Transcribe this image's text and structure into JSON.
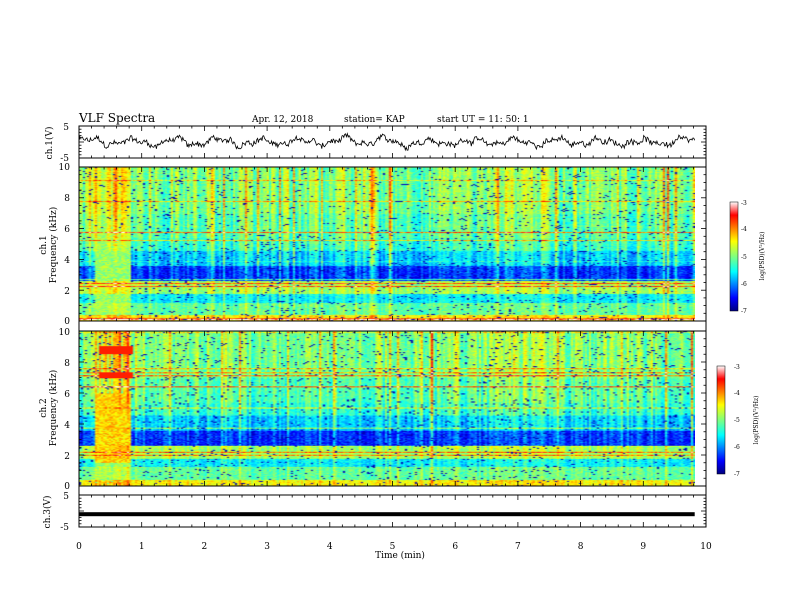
{
  "header": {
    "title": "VLF Spectra",
    "date": "Apr. 12, 2018",
    "station": "station= KAP",
    "start": "start  UT =   11: 50: 1"
  },
  "chart_data": [
    {
      "type": "line",
      "name": "ch1-waveform",
      "ylabel": "ch.1(V)",
      "ylim": [
        -5,
        5
      ],
      "yticks": [
        "5",
        "-5"
      ],
      "xlim": [
        0,
        10
      ],
      "t_end": 9.82,
      "description": "noisy waveform oscillating roughly between -2 and 2 V"
    },
    {
      "type": "heatmap",
      "name": "ch1-spectrogram",
      "ylabel": "ch.1",
      "ylabel2": "Frequency (kHz)",
      "ylim": [
        0,
        10
      ],
      "yticks": [
        "0",
        "2",
        "4",
        "6",
        "8",
        "10"
      ],
      "xlim": [
        0,
        10
      ],
      "t_end": 9.82,
      "colorbar": {
        "label": "log(PSD)(V²/Hz)",
        "range": [
          -7,
          -3
        ],
        "ticks": [
          "-3",
          "-4",
          "-5",
          "-6",
          "-7"
        ]
      }
    },
    {
      "type": "heatmap",
      "name": "ch2-spectrogram",
      "ylabel": "ch.2",
      "ylabel2": "Frequency (kHz)",
      "ylim": [
        0,
        10
      ],
      "yticks": [
        "0",
        "2",
        "4",
        "6",
        "8",
        "10"
      ],
      "xlim": [
        0,
        10
      ],
      "t_end": 9.82,
      "colorbar": {
        "label": "log(PSD)(V²/Hz)",
        "range": [
          -7,
          -3
        ],
        "ticks": [
          "-3",
          "-4",
          "-5",
          "-6",
          "-7"
        ]
      }
    },
    {
      "type": "line",
      "name": "ch3-waveform",
      "ylabel": "ch.3(V)",
      "ylim": [
        -5,
        5
      ],
      "yticks": [
        "5",
        "-5"
      ],
      "xlim": [
        0,
        10
      ],
      "value": -1,
      "xlabel": "Time (min)",
      "xticks": [
        "0",
        "1",
        "2",
        "3",
        "4",
        "5",
        "6",
        "7",
        "8",
        "9",
        "10"
      ]
    }
  ]
}
